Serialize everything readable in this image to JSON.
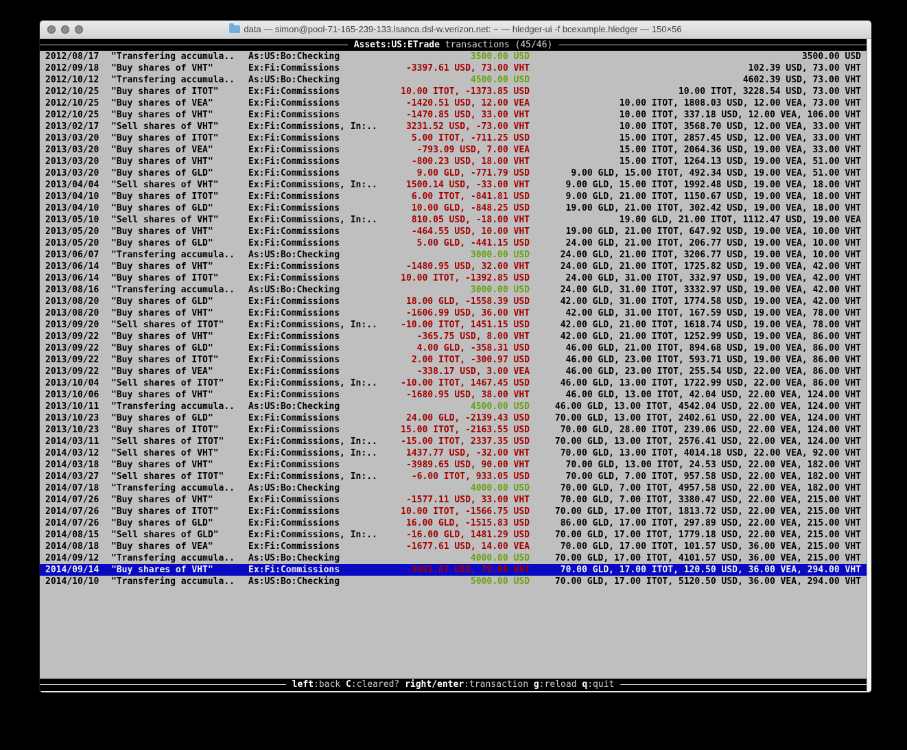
{
  "colors": {
    "terminal_bg": "#bfbfbf",
    "negative_amount": "#a40000",
    "positive_amount": "#66a20e",
    "selection_bg": "#0a0ac2"
  },
  "titlebar": {
    "title": "data — simon@pool-71-165-239-133.lsanca.dsl-w.verizon.net: ~ — hledger-ui -f bcexample.hledger — 150×56",
    "proxy_icon": "folder-icon"
  },
  "header": {
    "account": "Assets:US:ETrade",
    "mode_label": " transactions (45/46)"
  },
  "footer": {
    "items": [
      {
        "key": "left",
        "action": ":back"
      },
      {
        "key": "C",
        "action": ":cleared?"
      },
      {
        "key": "right/enter",
        "action": ":transaction"
      },
      {
        "key": "g",
        "action": ":reload"
      },
      {
        "key": "q",
        "action": ":quit"
      }
    ]
  },
  "transactions": {
    "rows": [
      {
        "date": "2012/08/17",
        "description": "\"Transfering accumula..",
        "account": "As:US:Bo:Checking",
        "change": "3500.00 USD",
        "change_color": "green",
        "balance": "3500.00 USD",
        "selected": false
      },
      {
        "date": "2012/09/18",
        "description": "\"Buy shares of VHT\"",
        "account": "Ex:Fi:Commissions",
        "change": "-3397.61 USD, 73.00 VHT",
        "change_color": "red",
        "balance": "102.39 USD, 73.00 VHT",
        "selected": false
      },
      {
        "date": "2012/10/12",
        "description": "\"Transfering accumula..",
        "account": "As:US:Bo:Checking",
        "change": "4500.00 USD",
        "change_color": "green",
        "balance": "4602.39 USD, 73.00 VHT",
        "selected": false
      },
      {
        "date": "2012/10/25",
        "description": "\"Buy shares of ITOT\"",
        "account": "Ex:Fi:Commissions",
        "change": "10.00 ITOT, -1373.85 USD",
        "change_color": "red",
        "balance": "10.00 ITOT, 3228.54 USD, 73.00 VHT",
        "selected": false
      },
      {
        "date": "2012/10/25",
        "description": "\"Buy shares of VEA\"",
        "account": "Ex:Fi:Commissions",
        "change": "-1420.51 USD, 12.00 VEA",
        "change_color": "red",
        "balance": "10.00 ITOT, 1808.03 USD, 12.00 VEA, 73.00 VHT",
        "selected": false
      },
      {
        "date": "2012/10/25",
        "description": "\"Buy shares of VHT\"",
        "account": "Ex:Fi:Commissions",
        "change": "-1470.85 USD, 33.00 VHT",
        "change_color": "red",
        "balance": "10.00 ITOT, 337.18 USD, 12.00 VEA, 106.00 VHT",
        "selected": false
      },
      {
        "date": "2013/02/17",
        "description": "\"Sell shares of VHT\"",
        "account": "Ex:Fi:Commissions, In:..",
        "change": "3231.52 USD, -73.00 VHT",
        "change_color": "red",
        "balance": "10.00 ITOT, 3568.70 USD, 12.00 VEA, 33.00 VHT",
        "selected": false
      },
      {
        "date": "2013/03/20",
        "description": "\"Buy shares of ITOT\"",
        "account": "Ex:Fi:Commissions",
        "change": "5.00 ITOT, -711.25 USD",
        "change_color": "red",
        "balance": "15.00 ITOT, 2857.45 USD, 12.00 VEA, 33.00 VHT",
        "selected": false
      },
      {
        "date": "2013/03/20",
        "description": "\"Buy shares of VEA\"",
        "account": "Ex:Fi:Commissions",
        "change": "-793.09 USD, 7.00 VEA",
        "change_color": "red",
        "balance": "15.00 ITOT, 2064.36 USD, 19.00 VEA, 33.00 VHT",
        "selected": false
      },
      {
        "date": "2013/03/20",
        "description": "\"Buy shares of VHT\"",
        "account": "Ex:Fi:Commissions",
        "change": "-800.23 USD, 18.00 VHT",
        "change_color": "red",
        "balance": "15.00 ITOT, 1264.13 USD, 19.00 VEA, 51.00 VHT",
        "selected": false
      },
      {
        "date": "2013/03/20",
        "description": "\"Buy shares of GLD\"",
        "account": "Ex:Fi:Commissions",
        "change": "9.00 GLD, -771.79 USD",
        "change_color": "red",
        "balance": "9.00 GLD, 15.00 ITOT, 492.34 USD, 19.00 VEA, 51.00 VHT",
        "selected": false
      },
      {
        "date": "2013/04/04",
        "description": "\"Sell shares of VHT\"",
        "account": "Ex:Fi:Commissions, In:..",
        "change": "1500.14 USD, -33.00 VHT",
        "change_color": "red",
        "balance": "9.00 GLD, 15.00 ITOT, 1992.48 USD, 19.00 VEA, 18.00 VHT",
        "selected": false
      },
      {
        "date": "2013/04/10",
        "description": "\"Buy shares of ITOT\"",
        "account": "Ex:Fi:Commissions",
        "change": "6.00 ITOT, -841.81 USD",
        "change_color": "red",
        "balance": "9.00 GLD, 21.00 ITOT, 1150.67 USD, 19.00 VEA, 18.00 VHT",
        "selected": false
      },
      {
        "date": "2013/04/10",
        "description": "\"Buy shares of GLD\"",
        "account": "Ex:Fi:Commissions",
        "change": "10.00 GLD, -848.25 USD",
        "change_color": "red",
        "balance": "19.00 GLD, 21.00 ITOT, 302.42 USD, 19.00 VEA, 18.00 VHT",
        "selected": false
      },
      {
        "date": "2013/05/10",
        "description": "\"Sell shares of VHT\"",
        "account": "Ex:Fi:Commissions, In:..",
        "change": "810.05 USD, -18.00 VHT",
        "change_color": "red",
        "balance": "19.00 GLD, 21.00 ITOT, 1112.47 USD, 19.00 VEA",
        "selected": false
      },
      {
        "date": "2013/05/20",
        "description": "\"Buy shares of VHT\"",
        "account": "Ex:Fi:Commissions",
        "change": "-464.55 USD, 10.00 VHT",
        "change_color": "red",
        "balance": "19.00 GLD, 21.00 ITOT, 647.92 USD, 19.00 VEA, 10.00 VHT",
        "selected": false
      },
      {
        "date": "2013/05/20",
        "description": "\"Buy shares of GLD\"",
        "account": "Ex:Fi:Commissions",
        "change": "5.00 GLD, -441.15 USD",
        "change_color": "red",
        "balance": "24.00 GLD, 21.00 ITOT, 206.77 USD, 19.00 VEA, 10.00 VHT",
        "selected": false
      },
      {
        "date": "2013/06/07",
        "description": "\"Transfering accumula..",
        "account": "As:US:Bo:Checking",
        "change": "3000.00 USD",
        "change_color": "green",
        "balance": "24.00 GLD, 21.00 ITOT, 3206.77 USD, 19.00 VEA, 10.00 VHT",
        "selected": false
      },
      {
        "date": "2013/06/14",
        "description": "\"Buy shares of VHT\"",
        "account": "Ex:Fi:Commissions",
        "change": "-1480.95 USD, 32.00 VHT",
        "change_color": "red",
        "balance": "24.00 GLD, 21.00 ITOT, 1725.82 USD, 19.00 VEA, 42.00 VHT",
        "selected": false
      },
      {
        "date": "2013/06/14",
        "description": "\"Buy shares of ITOT\"",
        "account": "Ex:Fi:Commissions",
        "change": "10.00 ITOT, -1392.85 USD",
        "change_color": "red",
        "balance": "24.00 GLD, 31.00 ITOT, 332.97 USD, 19.00 VEA, 42.00 VHT",
        "selected": false
      },
      {
        "date": "2013/08/16",
        "description": "\"Transfering accumula..",
        "account": "As:US:Bo:Checking",
        "change": "3000.00 USD",
        "change_color": "green",
        "balance": "24.00 GLD, 31.00 ITOT, 3332.97 USD, 19.00 VEA, 42.00 VHT",
        "selected": false
      },
      {
        "date": "2013/08/20",
        "description": "\"Buy shares of GLD\"",
        "account": "Ex:Fi:Commissions",
        "change": "18.00 GLD, -1558.39 USD",
        "change_color": "red",
        "balance": "42.00 GLD, 31.00 ITOT, 1774.58 USD, 19.00 VEA, 42.00 VHT",
        "selected": false
      },
      {
        "date": "2013/08/20",
        "description": "\"Buy shares of VHT\"",
        "account": "Ex:Fi:Commissions",
        "change": "-1606.99 USD, 36.00 VHT",
        "change_color": "red",
        "balance": "42.00 GLD, 31.00 ITOT, 167.59 USD, 19.00 VEA, 78.00 VHT",
        "selected": false
      },
      {
        "date": "2013/09/20",
        "description": "\"Sell shares of ITOT\"",
        "account": "Ex:Fi:Commissions, In:..",
        "change": "-10.00 ITOT, 1451.15 USD",
        "change_color": "red",
        "balance": "42.00 GLD, 21.00 ITOT, 1618.74 USD, 19.00 VEA, 78.00 VHT",
        "selected": false
      },
      {
        "date": "2013/09/22",
        "description": "\"Buy shares of VHT\"",
        "account": "Ex:Fi:Commissions",
        "change": "-365.75 USD, 8.00 VHT",
        "change_color": "red",
        "balance": "42.00 GLD, 21.00 ITOT, 1252.99 USD, 19.00 VEA, 86.00 VHT",
        "selected": false
      },
      {
        "date": "2013/09/22",
        "description": "\"Buy shares of GLD\"",
        "account": "Ex:Fi:Commissions",
        "change": "4.00 GLD, -358.31 USD",
        "change_color": "red",
        "balance": "46.00 GLD, 21.00 ITOT, 894.68 USD, 19.00 VEA, 86.00 VHT",
        "selected": false
      },
      {
        "date": "2013/09/22",
        "description": "\"Buy shares of ITOT\"",
        "account": "Ex:Fi:Commissions",
        "change": "2.00 ITOT, -300.97 USD",
        "change_color": "red",
        "balance": "46.00 GLD, 23.00 ITOT, 593.71 USD, 19.00 VEA, 86.00 VHT",
        "selected": false
      },
      {
        "date": "2013/09/22",
        "description": "\"Buy shares of VEA\"",
        "account": "Ex:Fi:Commissions",
        "change": "-338.17 USD, 3.00 VEA",
        "change_color": "red",
        "balance": "46.00 GLD, 23.00 ITOT, 255.54 USD, 22.00 VEA, 86.00 VHT",
        "selected": false
      },
      {
        "date": "2013/10/04",
        "description": "\"Sell shares of ITOT\"",
        "account": "Ex:Fi:Commissions, In:..",
        "change": "-10.00 ITOT, 1467.45 USD",
        "change_color": "red",
        "balance": "46.00 GLD, 13.00 ITOT, 1722.99 USD, 22.00 VEA, 86.00 VHT",
        "selected": false
      },
      {
        "date": "2013/10/06",
        "description": "\"Buy shares of VHT\"",
        "account": "Ex:Fi:Commissions",
        "change": "-1680.95 USD, 38.00 VHT",
        "change_color": "red",
        "balance": "46.00 GLD, 13.00 ITOT, 42.04 USD, 22.00 VEA, 124.00 VHT",
        "selected": false
      },
      {
        "date": "2013/10/11",
        "description": "\"Transfering accumula..",
        "account": "As:US:Bo:Checking",
        "change": "4500.00 USD",
        "change_color": "green",
        "balance": "46.00 GLD, 13.00 ITOT, 4542.04 USD, 22.00 VEA, 124.00 VHT",
        "selected": false
      },
      {
        "date": "2013/10/23",
        "description": "\"Buy shares of GLD\"",
        "account": "Ex:Fi:Commissions",
        "change": "24.00 GLD, -2139.43 USD",
        "change_color": "red",
        "balance": "70.00 GLD, 13.00 ITOT, 2402.61 USD, 22.00 VEA, 124.00 VHT",
        "selected": false
      },
      {
        "date": "2013/10/23",
        "description": "\"Buy shares of ITOT\"",
        "account": "Ex:Fi:Commissions",
        "change": "15.00 ITOT, -2163.55 USD",
        "change_color": "red",
        "balance": "70.00 GLD, 28.00 ITOT, 239.06 USD, 22.00 VEA, 124.00 VHT",
        "selected": false
      },
      {
        "date": "2014/03/11",
        "description": "\"Sell shares of ITOT\"",
        "account": "Ex:Fi:Commissions, In:..",
        "change": "-15.00 ITOT, 2337.35 USD",
        "change_color": "red",
        "balance": "70.00 GLD, 13.00 ITOT, 2576.41 USD, 22.00 VEA, 124.00 VHT",
        "selected": false
      },
      {
        "date": "2014/03/12",
        "description": "\"Sell shares of VHT\"",
        "account": "Ex:Fi:Commissions, In:..",
        "change": "1437.77 USD, -32.00 VHT",
        "change_color": "red",
        "balance": "70.00 GLD, 13.00 ITOT, 4014.18 USD, 22.00 VEA, 92.00 VHT",
        "selected": false
      },
      {
        "date": "2014/03/18",
        "description": "\"Buy shares of VHT\"",
        "account": "Ex:Fi:Commissions",
        "change": "-3989.65 USD, 90.00 VHT",
        "change_color": "red",
        "balance": "70.00 GLD, 13.00 ITOT, 24.53 USD, 22.00 VEA, 182.00 VHT",
        "selected": false
      },
      {
        "date": "2014/03/27",
        "description": "\"Sell shares of ITOT\"",
        "account": "Ex:Fi:Commissions, In:..",
        "change": "-6.00 ITOT, 933.05 USD",
        "change_color": "red",
        "balance": "70.00 GLD, 7.00 ITOT, 957.58 USD, 22.00 VEA, 182.00 VHT",
        "selected": false
      },
      {
        "date": "2014/07/18",
        "description": "\"Transfering accumula..",
        "account": "As:US:Bo:Checking",
        "change": "4000.00 USD",
        "change_color": "green",
        "balance": "70.00 GLD, 7.00 ITOT, 4957.58 USD, 22.00 VEA, 182.00 VHT",
        "selected": false
      },
      {
        "date": "2014/07/26",
        "description": "\"Buy shares of VHT\"",
        "account": "Ex:Fi:Commissions",
        "change": "-1577.11 USD, 33.00 VHT",
        "change_color": "red",
        "balance": "70.00 GLD, 7.00 ITOT, 3380.47 USD, 22.00 VEA, 215.00 VHT",
        "selected": false
      },
      {
        "date": "2014/07/26",
        "description": "\"Buy shares of ITOT\"",
        "account": "Ex:Fi:Commissions",
        "change": "10.00 ITOT, -1566.75 USD",
        "change_color": "red",
        "balance": "70.00 GLD, 17.00 ITOT, 1813.72 USD, 22.00 VEA, 215.00 VHT",
        "selected": false
      },
      {
        "date": "2014/07/26",
        "description": "\"Buy shares of GLD\"",
        "account": "Ex:Fi:Commissions",
        "change": "16.00 GLD, -1515.83 USD",
        "change_color": "red",
        "balance": "86.00 GLD, 17.00 ITOT, 297.89 USD, 22.00 VEA, 215.00 VHT",
        "selected": false
      },
      {
        "date": "2014/08/15",
        "description": "\"Sell shares of GLD\"",
        "account": "Ex:Fi:Commissions, In:..",
        "change": "-16.00 GLD, 1481.29 USD",
        "change_color": "red",
        "balance": "70.00 GLD, 17.00 ITOT, 1779.18 USD, 22.00 VEA, 215.00 VHT",
        "selected": false
      },
      {
        "date": "2014/08/18",
        "description": "\"Buy shares of VEA\"",
        "account": "Ex:Fi:Commissions",
        "change": "-1677.61 USD, 14.00 VEA",
        "change_color": "red",
        "balance": "70.00 GLD, 17.00 ITOT, 101.57 USD, 36.00 VEA, 215.00 VHT",
        "selected": false
      },
      {
        "date": "2014/09/12",
        "description": "\"Transfering accumula..",
        "account": "As:US:Bo:Checking",
        "change": "4000.00 USD",
        "change_color": "green",
        "balance": "70.00 GLD, 17.00 ITOT, 4101.57 USD, 36.00 VEA, 215.00 VHT",
        "selected": false
      },
      {
        "date": "2014/09/14",
        "description": "\"Buy shares of VHT\"",
        "account": "Ex:Fi:Commissions",
        "change": "-3981.07 USD, 79.00 VHT",
        "change_color": "red",
        "balance": "70.00 GLD, 17.00 ITOT, 120.50 USD, 36.00 VEA, 294.00 VHT",
        "selected": true
      },
      {
        "date": "2014/10/10",
        "description": "\"Transfering accumula..",
        "account": "As:US:Bo:Checking",
        "change": "5000.00 USD",
        "change_color": "green",
        "balance": "70.00 GLD, 17.00 ITOT, 5120.50 USD, 36.00 VEA, 294.00 VHT",
        "selected": false
      }
    ]
  }
}
